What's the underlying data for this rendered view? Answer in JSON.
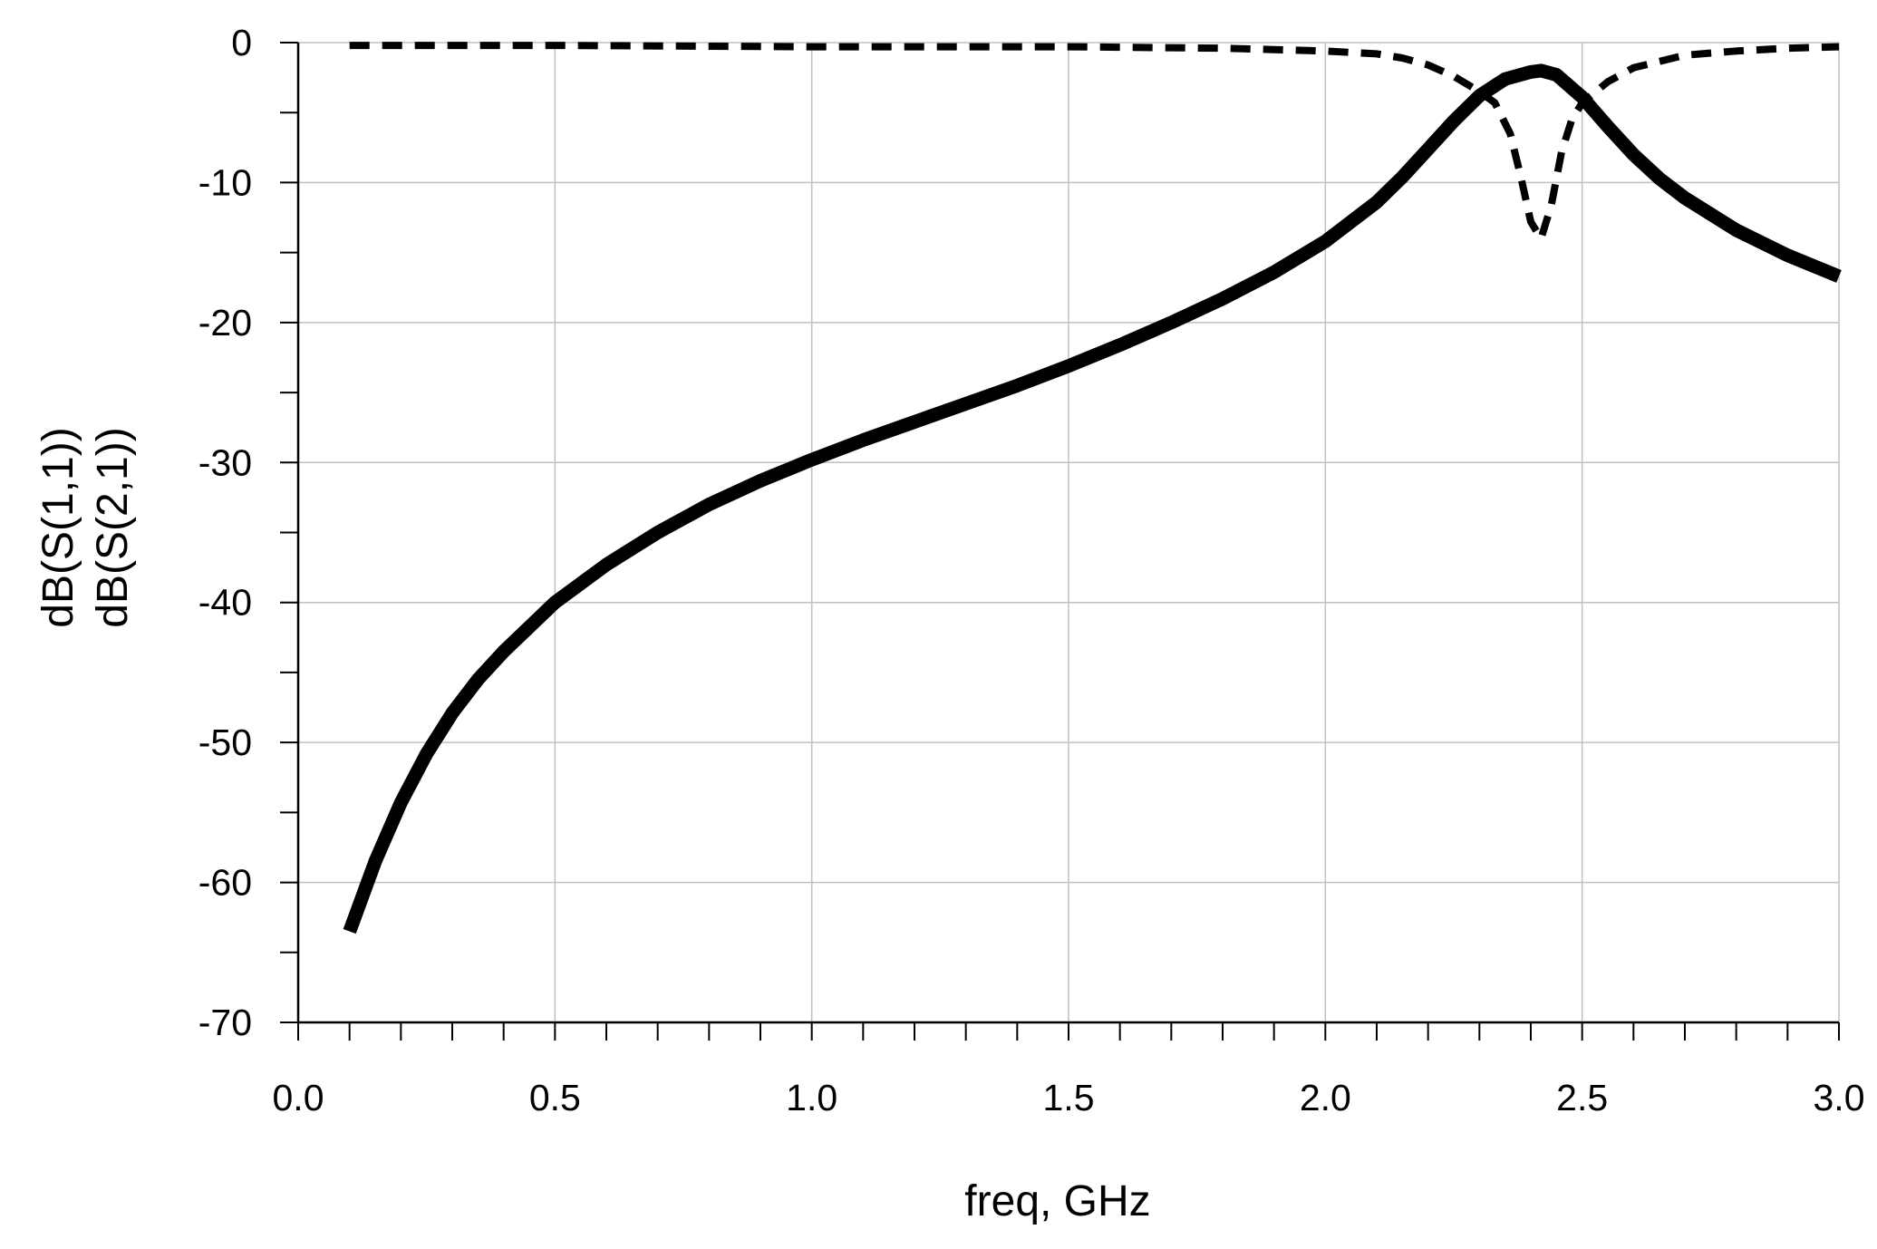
{
  "chart_data": {
    "type": "line",
    "xlabel": "freq, GHz",
    "ylabel_lines": [
      "dB(S(1,1))",
      "dB(S(2,1))"
    ],
    "xlim": [
      0.0,
      3.0
    ],
    "ylim": [
      -70,
      0
    ],
    "x_ticks": [
      "0.0",
      "0.5",
      "1.0",
      "1.5",
      "2.0",
      "2.5",
      "3.0"
    ],
    "y_ticks": [
      "0",
      "-10",
      "-20",
      "-30",
      "-40",
      "-50",
      "-60",
      "-70"
    ],
    "x_minor_step": 0.1,
    "y_minor_step": 5,
    "grid": true,
    "line_color": "#000000",
    "grid_color": "#c0c0c0",
    "series": [
      {
        "style": "solid",
        "x": [
          0.1,
          0.15,
          0.2,
          0.25,
          0.3,
          0.35,
          0.4,
          0.5,
          0.6,
          0.7,
          0.8,
          0.9,
          1.0,
          1.1,
          1.2,
          1.3,
          1.4,
          1.5,
          1.6,
          1.7,
          1.8,
          1.9,
          2.0,
          2.1,
          2.15,
          2.2,
          2.25,
          2.3,
          2.35,
          2.4,
          2.42,
          2.45,
          2.5,
          2.55,
          2.6,
          2.65,
          2.7,
          2.8,
          2.9,
          3.0
        ],
        "y": [
          -63.5,
          -58.5,
          -54.3,
          -50.8,
          -47.9,
          -45.5,
          -43.5,
          -40.0,
          -37.3,
          -35.0,
          -33.0,
          -31.3,
          -29.8,
          -28.4,
          -27.1,
          -25.8,
          -24.5,
          -23.1,
          -21.6,
          -20.0,
          -18.3,
          -16.4,
          -14.2,
          -11.4,
          -9.6,
          -7.6,
          -5.6,
          -3.8,
          -2.6,
          -2.1,
          -2.0,
          -2.3,
          -3.9,
          -6.0,
          -8.0,
          -9.7,
          -11.1,
          -13.4,
          -15.2,
          -16.7
        ]
      },
      {
        "style": "dashed",
        "x": [
          0.1,
          0.5,
          1.0,
          1.5,
          1.8,
          2.0,
          2.1,
          2.15,
          2.2,
          2.25,
          2.3,
          2.33,
          2.36,
          2.38,
          2.4,
          2.42,
          2.44,
          2.46,
          2.48,
          2.5,
          2.55,
          2.6,
          2.7,
          2.8,
          2.9,
          3.0
        ],
        "y": [
          -0.2,
          -0.2,
          -0.3,
          -0.3,
          -0.4,
          -0.6,
          -0.8,
          -1.1,
          -1.6,
          -2.4,
          -3.5,
          -4.3,
          -6.5,
          -9.5,
          -12.8,
          -14.0,
          -11.6,
          -7.8,
          -5.5,
          -4.3,
          -2.8,
          -1.8,
          -0.9,
          -0.6,
          -0.4,
          -0.3
        ]
      }
    ]
  }
}
